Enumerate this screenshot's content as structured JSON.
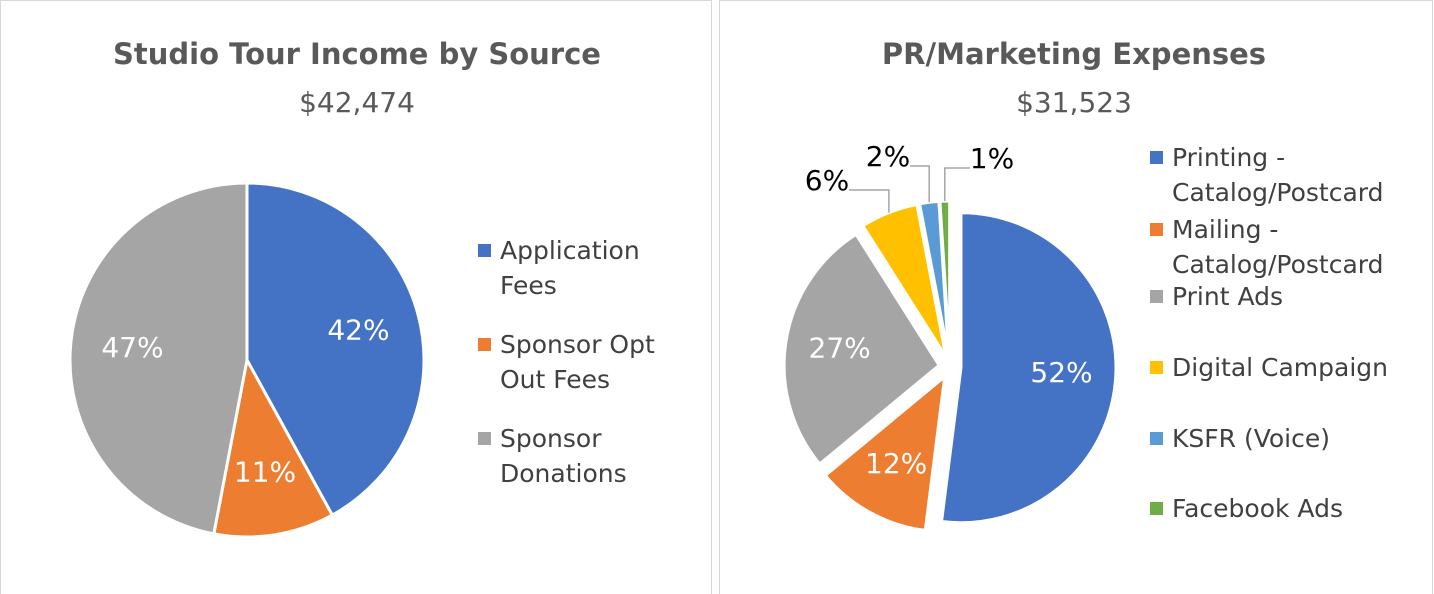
{
  "chart_data": [
    {
      "type": "pie",
      "title": "Studio Tour Income by Source",
      "subtitle": "$42,474",
      "categories": [
        "Application Fees",
        "Sponsor Opt Out Fees",
        "Sponsor Donations"
      ],
      "values": [
        42,
        11,
        47
      ],
      "value_labels": [
        "42%",
        "11%",
        "47%"
      ],
      "colors": [
        "#4472c4",
        "#ed7d31",
        "#a5a5a5"
      ],
      "legend": "right"
    },
    {
      "type": "pie",
      "title": "PR/Marketing Expenses",
      "subtitle": "$31,523",
      "categories": [
        "Printing - Catalog/Postcard",
        "Mailing - Catalog/Postcard",
        "Print Ads",
        "Digital Campaign",
        "KSFR (Voice)",
        "Facebook Ads"
      ],
      "values": [
        52,
        12,
        27,
        6,
        2,
        1
      ],
      "value_labels": [
        "52%",
        "12%",
        "27%",
        "6%",
        "2%",
        "1%"
      ],
      "colors": [
        "#4472c4",
        "#ed7d31",
        "#a5a5a5",
        "#ffc000",
        "#5b9bd5",
        "#70ad47"
      ],
      "legend": "right",
      "exploded": true
    }
  ]
}
